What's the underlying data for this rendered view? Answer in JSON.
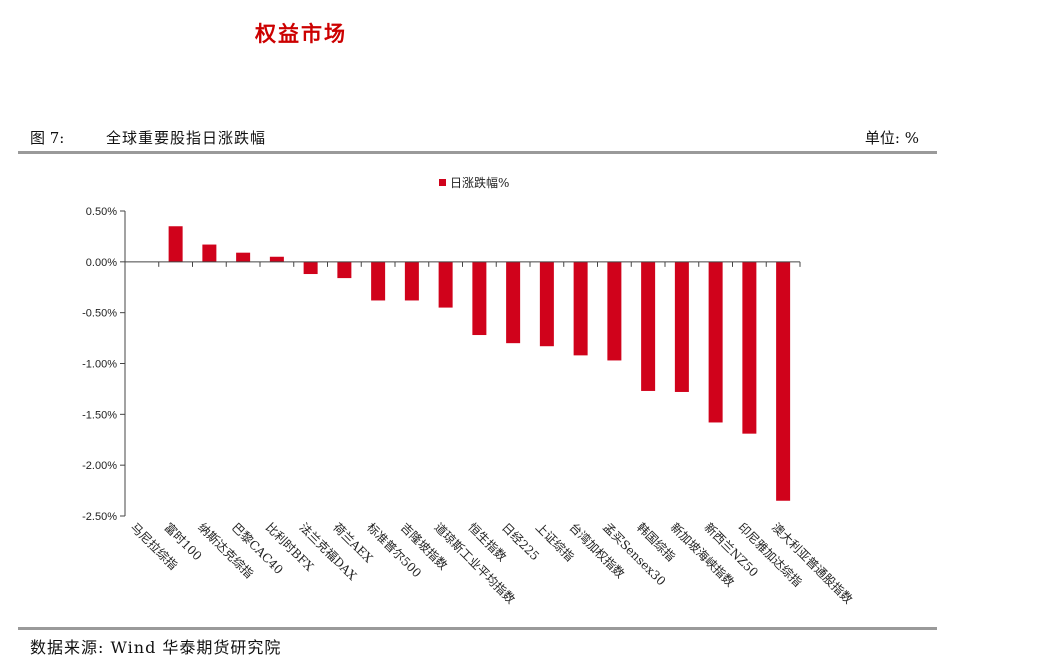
{
  "header": {
    "section_title": "权益市场"
  },
  "figure": {
    "label": "图 7:",
    "title": "全球重要股指日涨跌幅",
    "unit": "单位: %"
  },
  "source": "数据来源: Wind  华泰期货研究院",
  "colors": {
    "bar": "#d0021b",
    "section_title": "#cc0000",
    "rule": "#9a9a9a"
  },
  "chart_data": {
    "type": "bar",
    "categories": [
      "马尼拉综指",
      "富时100",
      "纳斯达克综指",
      "巴黎CAC40",
      "比利时BFX",
      "法兰克福DAX",
      "荷兰AEX",
      "标准普尔500",
      "吉隆坡指数",
      "道琼斯工业平均指数",
      "恒生指数",
      "日经225",
      "上证综指",
      "台湾加权指数",
      "孟买Sensex30",
      "韩国综指",
      "新加坡海峡指数",
      "新西兰NZ50",
      "印尼雅加达综指",
      "澳大利亚普通股指数"
    ],
    "series": [
      {
        "name": "日涨跌幅%",
        "values": [
          0.0,
          0.35,
          0.17,
          0.09,
          0.05,
          -0.12,
          -0.16,
          -0.38,
          -0.38,
          -0.45,
          -0.72,
          -0.8,
          -0.83,
          -0.92,
          -0.97,
          -1.27,
          -1.28,
          -1.58,
          -1.69,
          -2.35
        ]
      }
    ],
    "y_ticks": [
      "0.50%",
      "0.00%",
      "-0.50%",
      "-1.00%",
      "-1.50%",
      "-2.00%",
      "-2.50%"
    ],
    "ylim": [
      -2.5,
      0.5
    ],
    "legend_position": "top-center",
    "grid": false
  }
}
